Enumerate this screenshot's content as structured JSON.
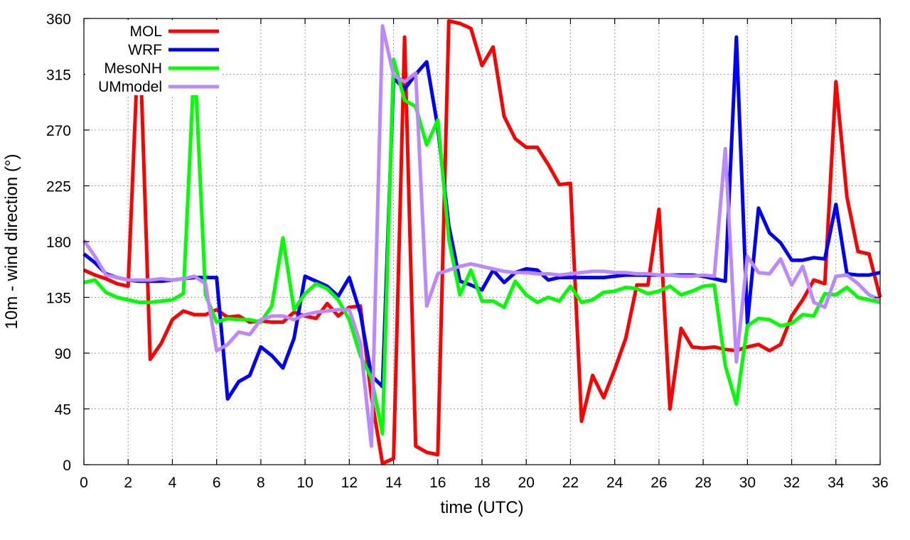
{
  "chart_data": {
    "type": "line",
    "title": "",
    "xlabel": "time (UTC)",
    "ylabel": "10m - wind direction (°)",
    "xlim": [
      0,
      36
    ],
    "ylim": [
      0,
      360
    ],
    "xticks": [
      0,
      2,
      4,
      6,
      8,
      10,
      12,
      14,
      16,
      18,
      20,
      22,
      24,
      26,
      28,
      30,
      32,
      34,
      36
    ],
    "yticks": [
      0,
      45,
      90,
      135,
      180,
      225,
      270,
      315,
      360
    ],
    "grid": true,
    "legend_position": "top-left",
    "series": [
      {
        "name": "MOL",
        "color": "#ff0000",
        "points": [
          [
            0,
            157
          ],
          [
            0.5,
            153
          ],
          [
            1,
            150
          ],
          [
            1.5,
            146
          ],
          [
            2,
            144
          ],
          [
            2.5,
            357
          ],
          [
            3,
            85
          ],
          [
            3.5,
            98
          ],
          [
            4,
            117
          ],
          [
            4.5,
            124
          ],
          [
            5,
            121
          ],
          [
            5.5,
            121
          ],
          [
            6,
            125
          ],
          [
            6.5,
            119
          ],
          [
            7,
            120
          ],
          [
            7.5,
            115
          ],
          [
            8,
            116
          ],
          [
            8.5,
            115
          ],
          [
            9,
            115
          ],
          [
            9.5,
            123
          ],
          [
            10,
            120
          ],
          [
            10.5,
            118
          ],
          [
            11,
            130
          ],
          [
            11.5,
            120
          ],
          [
            12,
            127
          ],
          [
            12.5,
            128
          ],
          [
            13,
            55
          ],
          [
            13.5,
            1
          ],
          [
            14,
            5
          ],
          [
            14.5,
            345
          ],
          [
            15,
            15
          ],
          [
            15.5,
            10
          ],
          [
            16,
            8
          ],
          [
            16.5,
            358
          ],
          [
            17,
            356
          ],
          [
            17.5,
            352
          ],
          [
            18,
            322
          ],
          [
            18.5,
            337
          ],
          [
            19,
            281
          ],
          [
            19.5,
            263
          ],
          [
            20,
            256
          ],
          [
            20.5,
            256
          ],
          [
            21,
            242
          ],
          [
            21.5,
            226
          ],
          [
            22,
            227
          ],
          [
            22.5,
            35
          ],
          [
            23,
            72
          ],
          [
            23.5,
            54
          ],
          [
            24,
            77
          ],
          [
            24.5,
            102
          ],
          [
            25,
            145
          ],
          [
            25.5,
            145
          ],
          [
            26,
            206
          ],
          [
            26.5,
            45
          ],
          [
            27,
            110
          ],
          [
            27.5,
            95
          ],
          [
            28,
            94
          ],
          [
            28.5,
            95
          ],
          [
            29,
            93
          ],
          [
            29.5,
            92
          ],
          [
            30,
            95
          ],
          [
            30.5,
            97
          ],
          [
            31,
            92
          ],
          [
            31.5,
            97
          ],
          [
            32,
            120
          ],
          [
            32.5,
            133
          ],
          [
            33,
            149
          ],
          [
            33.5,
            146
          ],
          [
            34,
            309
          ],
          [
            34.5,
            216
          ],
          [
            35,
            172
          ],
          [
            35.5,
            170
          ],
          [
            36,
            135
          ]
        ]
      },
      {
        "name": "WRF",
        "color": "#0000ff",
        "points": [
          [
            0,
            170
          ],
          [
            0.5,
            163
          ],
          [
            1,
            154
          ],
          [
            1.5,
            151
          ],
          [
            2,
            149
          ],
          [
            2.5,
            148
          ],
          [
            3,
            148
          ],
          [
            3.5,
            148
          ],
          [
            4,
            149
          ],
          [
            4.5,
            150
          ],
          [
            5,
            151
          ],
          [
            5.5,
            151
          ],
          [
            6,
            151
          ],
          [
            6.5,
            53
          ],
          [
            7,
            67
          ],
          [
            7.5,
            72
          ],
          [
            8,
            95
          ],
          [
            8.5,
            88
          ],
          [
            9,
            78
          ],
          [
            9.5,
            102
          ],
          [
            10,
            152
          ],
          [
            10.5,
            148
          ],
          [
            11,
            144
          ],
          [
            11.5,
            136
          ],
          [
            12,
            151
          ],
          [
            12.5,
            122
          ],
          [
            13,
            72
          ],
          [
            13.5,
            63
          ],
          [
            14,
            312
          ],
          [
            14.5,
            303
          ],
          [
            15,
            315
          ],
          [
            15.5,
            325
          ],
          [
            16,
            272
          ],
          [
            16.5,
            193
          ],
          [
            17,
            148
          ],
          [
            17.5,
            145
          ],
          [
            18,
            141
          ],
          [
            18.5,
            157
          ],
          [
            19,
            147
          ],
          [
            19.5,
            155
          ],
          [
            20,
            158
          ],
          [
            20.5,
            157
          ],
          [
            21,
            149
          ],
          [
            21.5,
            151
          ],
          [
            22,
            151
          ],
          [
            22.5,
            151
          ],
          [
            23,
            151
          ],
          [
            23.5,
            151
          ],
          [
            24,
            152
          ],
          [
            24.5,
            153
          ],
          [
            25,
            153
          ],
          [
            25.5,
            153
          ],
          [
            26,
            153
          ],
          [
            26.5,
            153
          ],
          [
            27,
            153
          ],
          [
            27.5,
            153
          ],
          [
            28,
            152
          ],
          [
            28.5,
            150
          ],
          [
            29,
            148
          ],
          [
            29.5,
            345
          ],
          [
            30,
            114
          ],
          [
            30.5,
            207
          ],
          [
            31,
            187
          ],
          [
            31.5,
            179
          ],
          [
            32,
            165
          ],
          [
            32.5,
            165
          ],
          [
            33,
            167
          ],
          [
            33.5,
            166
          ],
          [
            34,
            210
          ],
          [
            34.5,
            154
          ],
          [
            35,
            153
          ],
          [
            35.5,
            153
          ],
          [
            36,
            155
          ]
        ]
      },
      {
        "name": "MesoNH",
        "color": "#00ff00",
        "points": [
          [
            0,
            147
          ],
          [
            0.5,
            149
          ],
          [
            1,
            139
          ],
          [
            1.5,
            135
          ],
          [
            2,
            133
          ],
          [
            2.5,
            131
          ],
          [
            3,
            131
          ],
          [
            3.5,
            132
          ],
          [
            4,
            133
          ],
          [
            4.5,
            138
          ],
          [
            5,
            329
          ],
          [
            5.5,
            137
          ],
          [
            6,
            115
          ],
          [
            6.5,
            118
          ],
          [
            7,
            117
          ],
          [
            7.5,
            117
          ],
          [
            8,
            115
          ],
          [
            8.5,
            128
          ],
          [
            9,
            183
          ],
          [
            9.5,
            125
          ],
          [
            10,
            138
          ],
          [
            10.5,
            146
          ],
          [
            11,
            142
          ],
          [
            11.5,
            133
          ],
          [
            12,
            117
          ],
          [
            12.5,
            88
          ],
          [
            13,
            70
          ],
          [
            13.5,
            25
          ],
          [
            14,
            327
          ],
          [
            14.5,
            294
          ],
          [
            15,
            289
          ],
          [
            15.5,
            258
          ],
          [
            16,
            278
          ],
          [
            16.5,
            182
          ],
          [
            17,
            137
          ],
          [
            17.5,
            157
          ],
          [
            18,
            132
          ],
          [
            18.5,
            132
          ],
          [
            19,
            127
          ],
          [
            19.5,
            148
          ],
          [
            20,
            137
          ],
          [
            20.5,
            131
          ],
          [
            21,
            135
          ],
          [
            21.5,
            132
          ],
          [
            22,
            144
          ],
          [
            22.5,
            131
          ],
          [
            23,
            133
          ],
          [
            23.5,
            139
          ],
          [
            24,
            140
          ],
          [
            24.5,
            143
          ],
          [
            25,
            142
          ],
          [
            25.5,
            138
          ],
          [
            26,
            140
          ],
          [
            26.5,
            144
          ],
          [
            27,
            137
          ],
          [
            27.5,
            140
          ],
          [
            28,
            144
          ],
          [
            28.5,
            145
          ],
          [
            29,
            80
          ],
          [
            29.5,
            49
          ],
          [
            30,
            112
          ],
          [
            30.5,
            118
          ],
          [
            31,
            117
          ],
          [
            31.5,
            112
          ],
          [
            32,
            114
          ],
          [
            32.5,
            121
          ],
          [
            33,
            120
          ],
          [
            33.5,
            138
          ],
          [
            34,
            137
          ],
          [
            34.5,
            143
          ],
          [
            35,
            135
          ],
          [
            35.5,
            133
          ],
          [
            36,
            131
          ]
        ]
      },
      {
        "name": "UMmodel",
        "color": "#bb88ff",
        "points": [
          [
            0,
            181
          ],
          [
            0.5,
            168
          ],
          [
            1,
            153
          ],
          [
            1.5,
            151
          ],
          [
            2,
            149
          ],
          [
            2.5,
            149
          ],
          [
            3,
            149
          ],
          [
            3.5,
            150
          ],
          [
            4,
            149
          ],
          [
            4.5,
            150
          ],
          [
            5,
            152
          ],
          [
            5.5,
            146
          ],
          [
            6,
            92
          ],
          [
            6.5,
            97
          ],
          [
            7,
            107
          ],
          [
            7.5,
            105
          ],
          [
            8,
            117
          ],
          [
            8.5,
            120
          ],
          [
            9,
            120
          ],
          [
            9.5,
            117
          ],
          [
            10,
            121
          ],
          [
            10.5,
            123
          ],
          [
            11,
            124
          ],
          [
            11.5,
            125
          ],
          [
            12,
            125
          ],
          [
            12.5,
            98
          ],
          [
            13,
            15
          ],
          [
            13.5,
            354
          ],
          [
            14,
            314
          ],
          [
            14.5,
            309
          ],
          [
            15,
            316
          ],
          [
            15.5,
            128
          ],
          [
            16,
            154
          ],
          [
            16.5,
            157
          ],
          [
            17,
            160
          ],
          [
            17.5,
            162
          ],
          [
            18,
            160
          ],
          [
            18.5,
            158
          ],
          [
            19,
            156
          ],
          [
            19.5,
            155
          ],
          [
            20,
            155
          ],
          [
            20.5,
            154
          ],
          [
            21,
            154
          ],
          [
            21.5,
            153
          ],
          [
            22,
            154
          ],
          [
            22.5,
            155
          ],
          [
            23,
            156
          ],
          [
            23.5,
            156
          ],
          [
            24,
            155
          ],
          [
            24.5,
            155
          ],
          [
            25,
            154
          ],
          [
            25.5,
            154
          ],
          [
            26,
            153
          ],
          [
            26.5,
            153
          ],
          [
            27,
            152
          ],
          [
            27.5,
            152
          ],
          [
            28,
            153
          ],
          [
            28.5,
            152
          ],
          [
            29,
            255
          ],
          [
            29.5,
            83
          ],
          [
            30,
            168
          ],
          [
            30.5,
            155
          ],
          [
            31,
            154
          ],
          [
            31.5,
            166
          ],
          [
            32,
            145
          ],
          [
            32.5,
            160
          ],
          [
            33,
            131
          ],
          [
            33.5,
            127
          ],
          [
            34,
            152
          ],
          [
            34.5,
            153
          ],
          [
            35,
            146
          ],
          [
            35.5,
            137
          ],
          [
            36,
            133
          ]
        ]
      }
    ]
  }
}
